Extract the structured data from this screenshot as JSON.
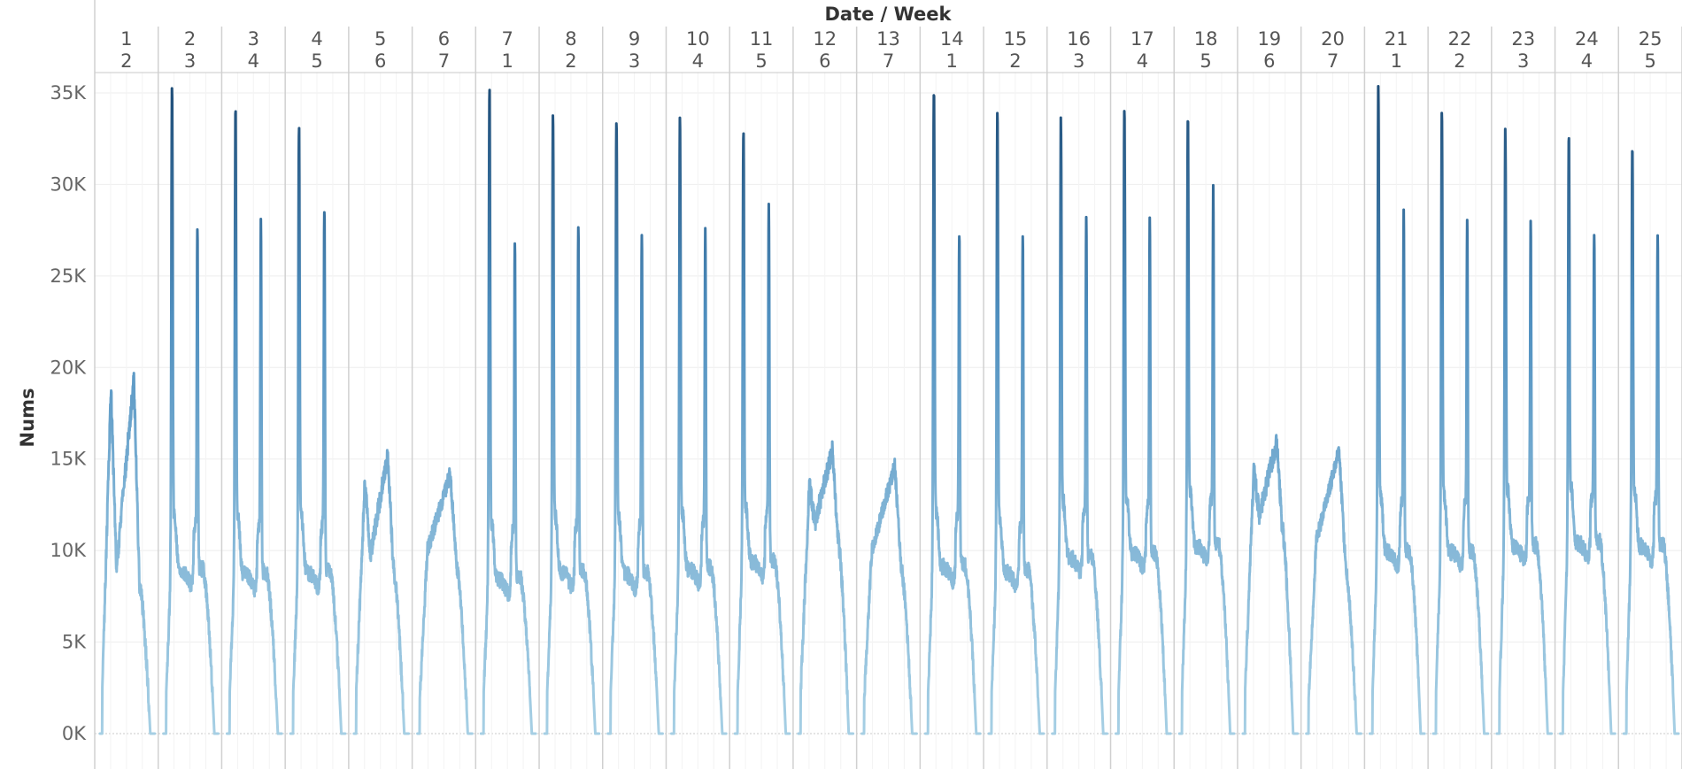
{
  "chart_data": {
    "type": "line",
    "title": "",
    "xlabel": "Date / Week",
    "ylabel": "Nums",
    "ylim": [
      0,
      35000
    ],
    "yticks": [
      0,
      5000,
      10000,
      15000,
      20000,
      25000,
      30000,
      35000
    ],
    "ytick_labels": [
      "0K",
      "5K",
      "10K",
      "15K",
      "20K",
      "25K",
      "30K",
      "35K"
    ],
    "grid": true,
    "color_gradient": [
      "#a6cfe4",
      "#7fb3d5",
      "#4f8fbf",
      "#1f4e79"
    ],
    "panels": [
      {
        "date": "1",
        "week": "2",
        "kind": "weekend-sat",
        "peak1": 18900,
        "peak2": 19400,
        "base": 9000
      },
      {
        "date": "2",
        "week": "3",
        "kind": "weekday",
        "peak1": 34100,
        "peak2": 26300,
        "base": 8500
      },
      {
        "date": "3",
        "week": "4",
        "kind": "weekday",
        "peak1": 33000,
        "peak2": 26200,
        "base": 8300
      },
      {
        "date": "4",
        "week": "5",
        "kind": "weekday",
        "peak1": 31900,
        "peak2": 27200,
        "base": 8400
      },
      {
        "date": "5",
        "week": "6",
        "kind": "weekend-sat",
        "peak1": 13800,
        "peak2": 15200,
        "base": 9800
      },
      {
        "date": "6",
        "week": "7",
        "kind": "weekend-sun",
        "peak1": 10000,
        "peak2": 14200,
        "base": 9500
      },
      {
        "date": "7",
        "week": "1",
        "kind": "weekday",
        "peak1": 34100,
        "peak2": 25300,
        "base": 8000
      },
      {
        "date": "8",
        "week": "2",
        "kind": "weekday",
        "peak1": 32700,
        "peak2": 26200,
        "base": 8400
      },
      {
        "date": "9",
        "week": "3",
        "kind": "weekday",
        "peak1": 32700,
        "peak2": 25600,
        "base": 8300
      },
      {
        "date": "10",
        "week": "4",
        "kind": "weekday",
        "peak1": 32500,
        "peak2": 25900,
        "base": 8600
      },
      {
        "date": "11",
        "week": "5",
        "kind": "weekday",
        "peak1": 32000,
        "peak2": 27300,
        "base": 9000
      },
      {
        "date": "12",
        "week": "6",
        "kind": "weekend-sat",
        "peak1": 13600,
        "peak2": 15500,
        "base": 11500
      },
      {
        "date": "13",
        "week": "7",
        "kind": "weekend-sun",
        "peak1": 10000,
        "peak2": 14600,
        "base": 10000
      },
      {
        "date": "14",
        "week": "1",
        "kind": "weekday",
        "peak1": 34300,
        "peak2": 25900,
        "base": 8700
      },
      {
        "date": "15",
        "week": "2",
        "kind": "weekday",
        "peak1": 32500,
        "peak2": 25800,
        "base": 8400
      },
      {
        "date": "16",
        "week": "3",
        "kind": "weekday",
        "peak1": 32300,
        "peak2": 26700,
        "base": 9200
      },
      {
        "date": "17",
        "week": "4",
        "kind": "weekday",
        "peak1": 32900,
        "peak2": 26500,
        "base": 9400
      },
      {
        "date": "18",
        "week": "5",
        "kind": "weekday",
        "peak1": 32400,
        "peak2": 28000,
        "base": 9800
      },
      {
        "date": "19",
        "week": "6",
        "kind": "weekend-sat",
        "peak1": 14400,
        "peak2": 15900,
        "base": 12000
      },
      {
        "date": "20",
        "week": "7",
        "kind": "weekend-sun",
        "peak1": 10500,
        "peak2": 15500,
        "base": 10200
      },
      {
        "date": "21",
        "week": "1",
        "kind": "weekday",
        "peak1": 34000,
        "peak2": 26700,
        "base": 9500
      },
      {
        "date": "22",
        "week": "2",
        "kind": "weekday",
        "peak1": 32600,
        "peak2": 26800,
        "base": 9500
      },
      {
        "date": "23",
        "week": "3",
        "kind": "weekday",
        "peak1": 31700,
        "peak2": 26100,
        "base": 9800
      },
      {
        "date": "24",
        "week": "4",
        "kind": "weekday",
        "peak1": 31600,
        "peak2": 26100,
        "base": 10000
      },
      {
        "date": "25",
        "week": "5",
        "kind": "weekday",
        "peak1": 31100,
        "peak2": 25800,
        "base": 9800
      }
    ]
  }
}
